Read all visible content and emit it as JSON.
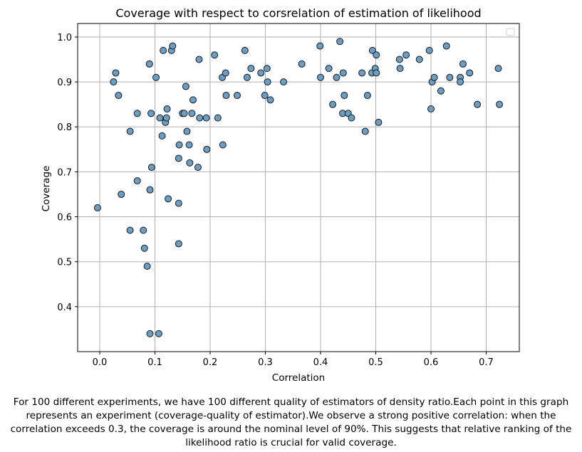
{
  "chart_data": {
    "type": "scatter",
    "title": "Coverage with respect to corsrelation of estimation of likelihood",
    "xlabel": "Correlation",
    "ylabel": "Coverage",
    "xlim": [
      -0.04,
      0.76
    ],
    "ylim": [
      0.3,
      1.03
    ],
    "xticks": [
      0.0,
      0.1,
      0.2,
      0.3,
      0.4,
      0.5,
      0.6,
      0.7
    ],
    "xtick_labels": [
      "0.0",
      "0.1",
      "0.2",
      "0.3",
      "0.4",
      "0.5",
      "0.6",
      "0.7"
    ],
    "yticks": [
      0.4,
      0.5,
      0.6,
      0.7,
      0.8,
      0.9,
      1.0
    ],
    "ytick_labels": [
      "0.4",
      "0.5",
      "0.6",
      "0.7",
      "0.8",
      "0.9",
      "1.0"
    ],
    "grid": true,
    "legend_position": "upper right",
    "legend_entries": [],
    "marker_color": "#6a9ec5",
    "marker_edge_color": "#1a1a1a",
    "points": [
      [
        -0.004,
        0.62
      ],
      [
        0.025,
        0.9
      ],
      [
        0.029,
        0.92
      ],
      [
        0.034,
        0.87
      ],
      [
        0.039,
        0.65
      ],
      [
        0.055,
        0.57
      ],
      [
        0.055,
        0.79
      ],
      [
        0.068,
        0.83
      ],
      [
        0.068,
        0.68
      ],
      [
        0.079,
        0.57
      ],
      [
        0.081,
        0.53
      ],
      [
        0.086,
        0.49
      ],
      [
        0.09,
        0.94
      ],
      [
        0.091,
        0.66
      ],
      [
        0.093,
        0.83
      ],
      [
        0.094,
        0.71
      ],
      [
        0.091,
        0.34
      ],
      [
        0.102,
        0.91
      ],
      [
        0.107,
        0.34
      ],
      [
        0.109,
        0.82
      ],
      [
        0.113,
        0.78
      ],
      [
        0.115,
        0.97
      ],
      [
        0.119,
        0.81
      ],
      [
        0.121,
        0.82
      ],
      [
        0.122,
        0.84
      ],
      [
        0.124,
        0.64
      ],
      [
        0.13,
        0.97
      ],
      [
        0.132,
        0.98
      ],
      [
        0.143,
        0.63
      ],
      [
        0.143,
        0.73
      ],
      [
        0.144,
        0.76
      ],
      [
        0.143,
        0.54
      ],
      [
        0.15,
        0.83
      ],
      [
        0.153,
        0.83
      ],
      [
        0.156,
        0.89
      ],
      [
        0.158,
        0.79
      ],
      [
        0.162,
        0.76
      ],
      [
        0.163,
        0.72
      ],
      [
        0.167,
        0.83
      ],
      [
        0.169,
        0.86
      ],
      [
        0.178,
        0.71
      ],
      [
        0.18,
        0.95
      ],
      [
        0.181,
        0.82
      ],
      [
        0.193,
        0.82
      ],
      [
        0.194,
        0.75
      ],
      [
        0.208,
        0.96
      ],
      [
        0.214,
        0.82
      ],
      [
        0.222,
        0.91
      ],
      [
        0.223,
        0.76
      ],
      [
        0.228,
        0.92
      ],
      [
        0.229,
        0.87
      ],
      [
        0.249,
        0.87
      ],
      [
        0.263,
        0.97
      ],
      [
        0.267,
        0.91
      ],
      [
        0.274,
        0.93
      ],
      [
        0.292,
        0.92
      ],
      [
        0.299,
        0.87
      ],
      [
        0.303,
        0.93
      ],
      [
        0.304,
        0.9
      ],
      [
        0.309,
        0.86
      ],
      [
        0.333,
        0.9
      ],
      [
        0.366,
        0.94
      ],
      [
        0.399,
        0.98
      ],
      [
        0.4,
        0.91
      ],
      [
        0.415,
        0.93
      ],
      [
        0.422,
        0.85
      ],
      [
        0.429,
        0.91
      ],
      [
        0.435,
        0.99
      ],
      [
        0.44,
        0.83
      ],
      [
        0.441,
        0.92
      ],
      [
        0.443,
        0.87
      ],
      [
        0.45,
        0.83
      ],
      [
        0.456,
        0.82
      ],
      [
        0.475,
        0.92
      ],
      [
        0.481,
        0.79
      ],
      [
        0.485,
        0.87
      ],
      [
        0.493,
        0.92
      ],
      [
        0.494,
        0.97
      ],
      [
        0.499,
        0.93
      ],
      [
        0.501,
        0.96
      ],
      [
        0.501,
        0.92
      ],
      [
        0.505,
        0.81
      ],
      [
        0.543,
        0.95
      ],
      [
        0.544,
        0.93
      ],
      [
        0.555,
        0.96
      ],
      [
        0.579,
        0.95
      ],
      [
        0.597,
        0.97
      ],
      [
        0.6,
        0.84
      ],
      [
        0.602,
        0.9
      ],
      [
        0.606,
        0.91
      ],
      [
        0.618,
        0.88
      ],
      [
        0.628,
        0.98
      ],
      [
        0.634,
        0.91
      ],
      [
        0.653,
        0.91
      ],
      [
        0.653,
        0.9
      ],
      [
        0.658,
        0.94
      ],
      [
        0.67,
        0.92
      ],
      [
        0.684,
        0.85
      ],
      [
        0.722,
        0.93
      ],
      [
        0.724,
        0.85
      ]
    ]
  },
  "caption": "For 100 different experiments, we have 100 different quality of estimators of density ratio.Each point in this graph represents an experiment (coverage-quality of estimator).We observe a strong positive correlation: when the correlation exceeds 0.3, the coverage is around the nominal level of 90%. This suggests that relative ranking of the likelihood ratio is crucial for valid coverage."
}
